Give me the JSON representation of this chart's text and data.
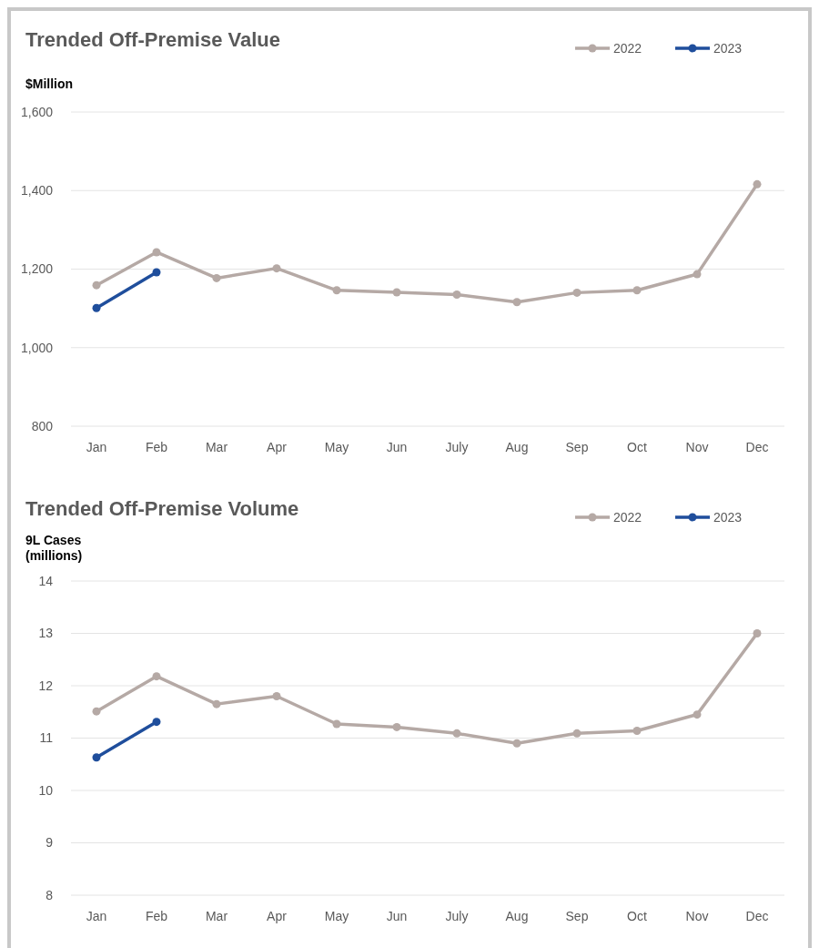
{
  "chart_data": [
    {
      "type": "line",
      "title": "Trended Off-Premise Value",
      "ylabel": "$Million",
      "categories": [
        "Jan",
        "Feb",
        "Mar",
        "Apr",
        "May",
        "Jun",
        "July",
        "Aug",
        "Sep",
        "Oct",
        "Nov",
        "Dec"
      ],
      "series": [
        {
          "name": "2022",
          "color": "#b5a9a5",
          "values": [
            1159,
            1243,
            1177,
            1202,
            1146,
            1141,
            1135,
            1116,
            1140,
            1146,
            1187,
            1416
          ]
        },
        {
          "name": "2023",
          "color": "#1f4e9c",
          "values": [
            1101,
            1192,
            null,
            null,
            null,
            null,
            null,
            null,
            null,
            null,
            null,
            null
          ]
        }
      ],
      "ylim": [
        800,
        1600
      ],
      "yticks": [
        {
          "value": 800,
          "label": "800"
        },
        {
          "value": 1000,
          "label": "1,000"
        },
        {
          "value": 1200,
          "label": "1,200"
        },
        {
          "value": 1400,
          "label": "1,400"
        },
        {
          "value": 1600,
          "label": "1,600"
        }
      ],
      "grid": "y",
      "legend": "top right",
      "marker": "circle"
    },
    {
      "type": "line",
      "title": "Trended Off-Premise Volume",
      "ylabel": "9L Cases (millions)",
      "categories": [
        "Jan",
        "Feb",
        "Mar",
        "Apr",
        "May",
        "Jun",
        "July",
        "Aug",
        "Sep",
        "Oct",
        "Nov",
        "Dec"
      ],
      "series": [
        {
          "name": "2022",
          "color": "#b5a9a5",
          "values": [
            11.51,
            12.18,
            11.65,
            11.8,
            11.27,
            11.21,
            11.09,
            10.9,
            11.09,
            11.14,
            11.45,
            13.0
          ]
        },
        {
          "name": "2023",
          "color": "#1f4e9c",
          "values": [
            10.63,
            11.31,
            null,
            null,
            null,
            null,
            null,
            null,
            null,
            null,
            null,
            null
          ]
        }
      ],
      "ylim": [
        8,
        14
      ],
      "yticks": [
        8,
        9,
        10,
        11,
        12,
        13,
        14
      ],
      "grid": "y",
      "legend": "top right",
      "marker": "circle"
    }
  ]
}
